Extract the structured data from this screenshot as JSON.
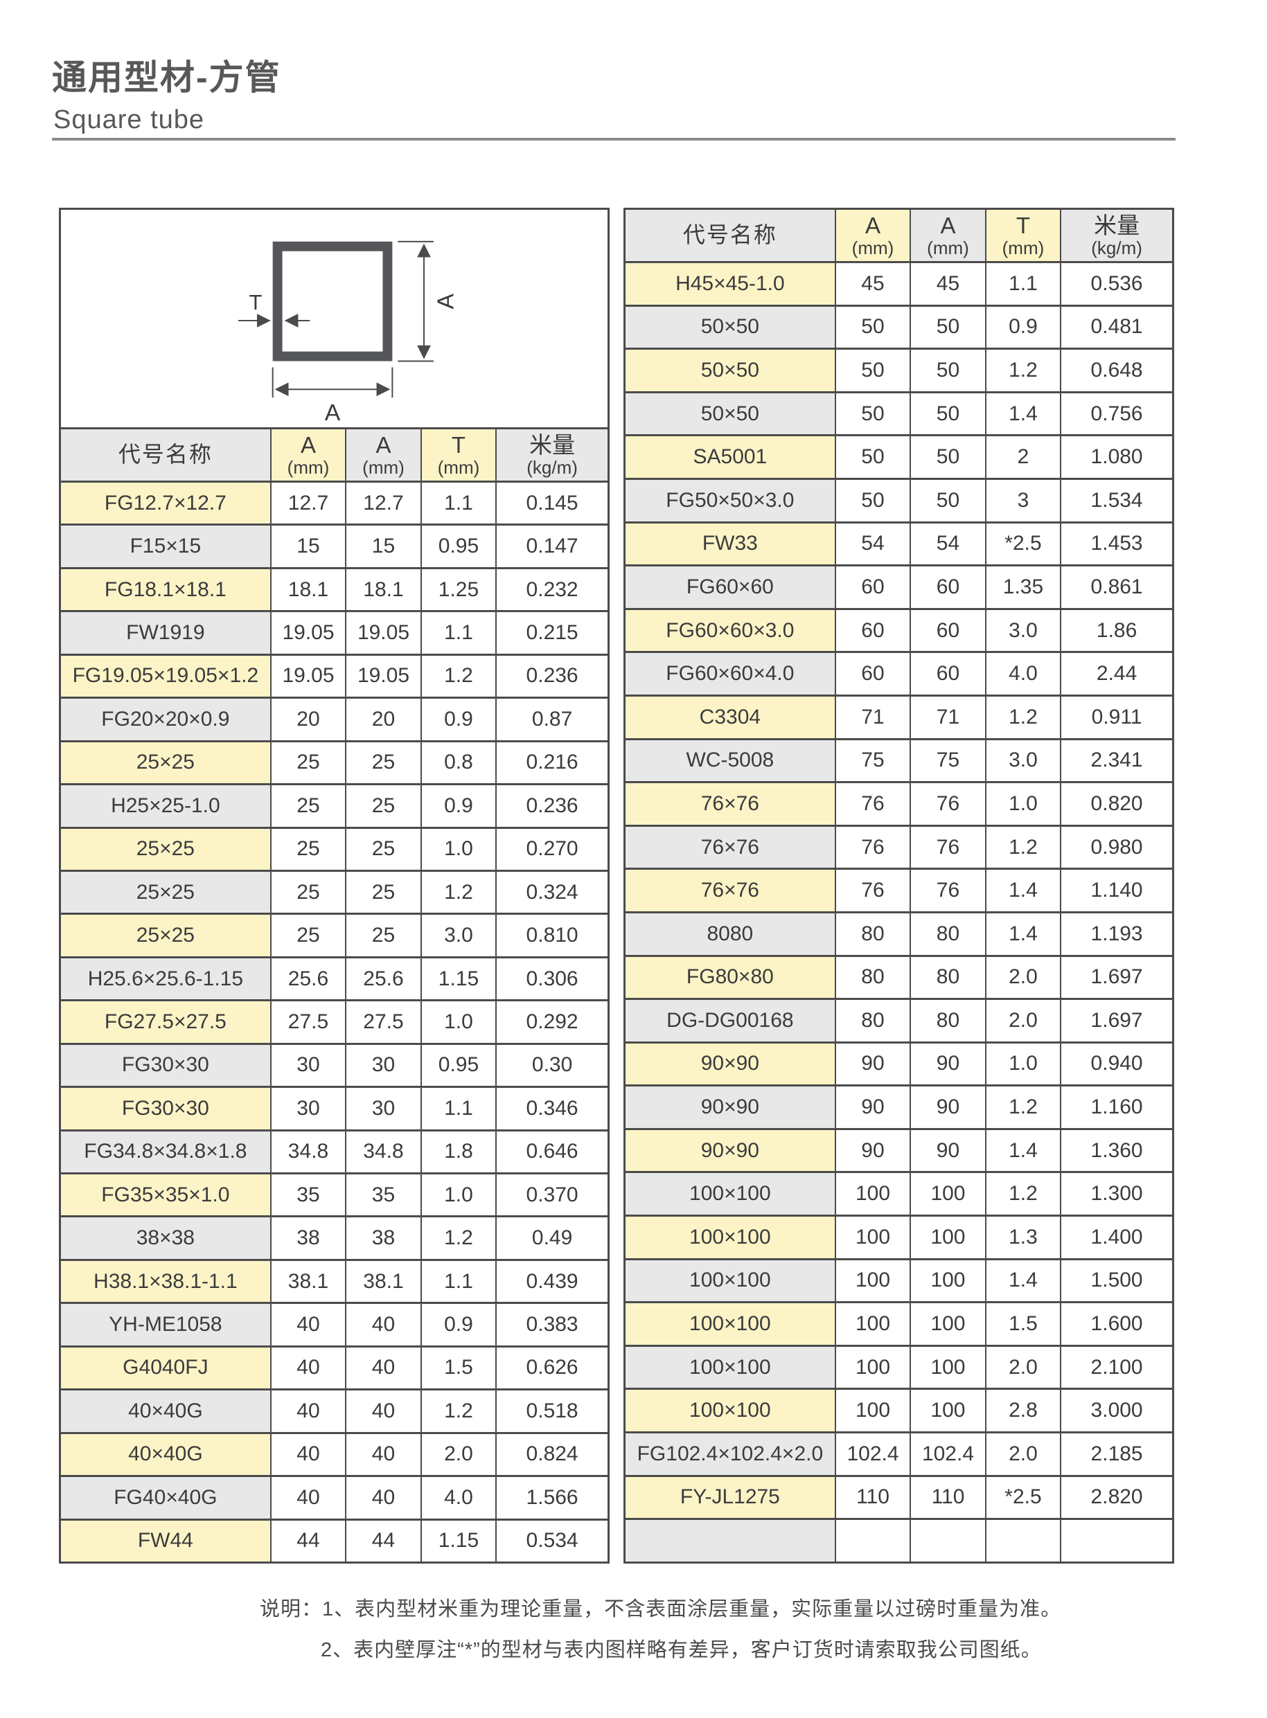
{
  "page": {
    "title": "通用型材-方管",
    "subtitle": "Square tube"
  },
  "diagram": {
    "label_t": "T",
    "label_a_side": "A",
    "label_a_bottom": "A"
  },
  "columns": [
    {
      "t": "代号名称",
      "s": ""
    },
    {
      "t": "A",
      "s": "(mm)"
    },
    {
      "t": "A",
      "s": "(mm)"
    },
    {
      "t": "T",
      "s": "(mm)"
    },
    {
      "t": "米量",
      "s": "(kg/m)"
    }
  ],
  "left_table": {
    "rows": [
      [
        "FG12.7×12.7",
        "12.7",
        "12.7",
        "1.1",
        "0.145"
      ],
      [
        "F15×15",
        "15",
        "15",
        "0.95",
        "0.147"
      ],
      [
        "FG18.1×18.1",
        "18.1",
        "18.1",
        "1.25",
        "0.232"
      ],
      [
        "FW1919",
        "19.05",
        "19.05",
        "1.1",
        "0.215"
      ],
      [
        "FG19.05×19.05×1.2",
        "19.05",
        "19.05",
        "1.2",
        "0.236"
      ],
      [
        "FG20×20×0.9",
        "20",
        "20",
        "0.9",
        "0.87"
      ],
      [
        "25×25",
        "25",
        "25",
        "0.8",
        "0.216"
      ],
      [
        "H25×25-1.0",
        "25",
        "25",
        "0.9",
        "0.236"
      ],
      [
        "25×25",
        "25",
        "25",
        "1.0",
        "0.270"
      ],
      [
        "25×25",
        "25",
        "25",
        "1.2",
        "0.324"
      ],
      [
        "25×25",
        "25",
        "25",
        "3.0",
        "0.810"
      ],
      [
        "H25.6×25.6-1.15",
        "25.6",
        "25.6",
        "1.15",
        "0.306"
      ],
      [
        "FG27.5×27.5",
        "27.5",
        "27.5",
        "1.0",
        "0.292"
      ],
      [
        "FG30×30",
        "30",
        "30",
        "0.95",
        "0.30"
      ],
      [
        "FG30×30",
        "30",
        "30",
        "1.1",
        "0.346"
      ],
      [
        "FG34.8×34.8×1.8",
        "34.8",
        "34.8",
        "1.8",
        "0.646"
      ],
      [
        "FG35×35×1.0",
        "35",
        "35",
        "1.0",
        "0.370"
      ],
      [
        "38×38",
        "38",
        "38",
        "1.2",
        "0.49"
      ],
      [
        "H38.1×38.1-1.1",
        "38.1",
        "38.1",
        "1.1",
        "0.439"
      ],
      [
        "YH-ME1058",
        "40",
        "40",
        "0.9",
        "0.383"
      ],
      [
        "G4040FJ",
        "40",
        "40",
        "1.5",
        "0.626"
      ],
      [
        "40×40G",
        "40",
        "40",
        "1.2",
        "0.518"
      ],
      [
        "40×40G",
        "40",
        "40",
        "2.0",
        "0.824"
      ],
      [
        "FG40×40G",
        "40",
        "40",
        "4.0",
        "1.566"
      ],
      [
        "FW44",
        "44",
        "44",
        "1.15",
        "0.534"
      ]
    ]
  },
  "right_table": {
    "rows": [
      [
        "H45×45-1.0",
        "45",
        "45",
        "1.1",
        "0.536"
      ],
      [
        "50×50",
        "50",
        "50",
        "0.9",
        "0.481"
      ],
      [
        "50×50",
        "50",
        "50",
        "1.2",
        "0.648"
      ],
      [
        "50×50",
        "50",
        "50",
        "1.4",
        "0.756"
      ],
      [
        "SA5001",
        "50",
        "50",
        "2",
        "1.080"
      ],
      [
        "FG50×50×3.0",
        "50",
        "50",
        "3",
        "1.534"
      ],
      [
        "FW33",
        "54",
        "54",
        "*2.5",
        "1.453"
      ],
      [
        "FG60×60",
        "60",
        "60",
        "1.35",
        "0.861"
      ],
      [
        "FG60×60×3.0",
        "60",
        "60",
        "3.0",
        "1.86"
      ],
      [
        "FG60×60×4.0",
        "60",
        "60",
        "4.0",
        "2.44"
      ],
      [
        "C3304",
        "71",
        "71",
        "1.2",
        "0.911"
      ],
      [
        "WC-5008",
        "75",
        "75",
        "3.0",
        "2.341"
      ],
      [
        "76×76",
        "76",
        "76",
        "1.0",
        "0.820"
      ],
      [
        "76×76",
        "76",
        "76",
        "1.2",
        "0.980"
      ],
      [
        "76×76",
        "76",
        "76",
        "1.4",
        "1.140"
      ],
      [
        "8080",
        "80",
        "80",
        "1.4",
        "1.193"
      ],
      [
        "FG80×80",
        "80",
        "80",
        "2.0",
        "1.697"
      ],
      [
        "DG-DG00168",
        "80",
        "80",
        "2.0",
        "1.697"
      ],
      [
        "90×90",
        "90",
        "90",
        "1.0",
        "0.940"
      ],
      [
        "90×90",
        "90",
        "90",
        "1.2",
        "1.160"
      ],
      [
        "90×90",
        "90",
        "90",
        "1.4",
        "1.360"
      ],
      [
        "100×100",
        "100",
        "100",
        "1.2",
        "1.300"
      ],
      [
        "100×100",
        "100",
        "100",
        "1.3",
        "1.400"
      ],
      [
        "100×100",
        "100",
        "100",
        "1.4",
        "1.500"
      ],
      [
        "100×100",
        "100",
        "100",
        "1.5",
        "1.600"
      ],
      [
        "100×100",
        "100",
        "100",
        "2.0",
        "2.100"
      ],
      [
        "100×100",
        "100",
        "100",
        "2.8",
        "3.000"
      ],
      [
        "FG102.4×102.4×2.0",
        "102.4",
        "102.4",
        "2.0",
        "2.185"
      ],
      [
        "FY-JL1275",
        "110",
        "110",
        "*2.5",
        "2.820"
      ],
      [
        "",
        "",
        "",
        "",
        ""
      ]
    ]
  },
  "notes": {
    "prefix": "说明：",
    "line1": "1、表内型材米重为理论重量，不含表面涂层重量，实际重量以过磅时重量为准。",
    "line2": "2、表内壁厚注“*”的型材与表内图样略有差异，客户订货时请索取我公司图纸。"
  },
  "colors": {
    "yellow": "#fcf4c6",
    "gray": "#e8e8e8",
    "border": "#4b4b4c",
    "text": "#3b3b3d",
    "title": "#57585a",
    "rule": "#8c8c8c"
  }
}
